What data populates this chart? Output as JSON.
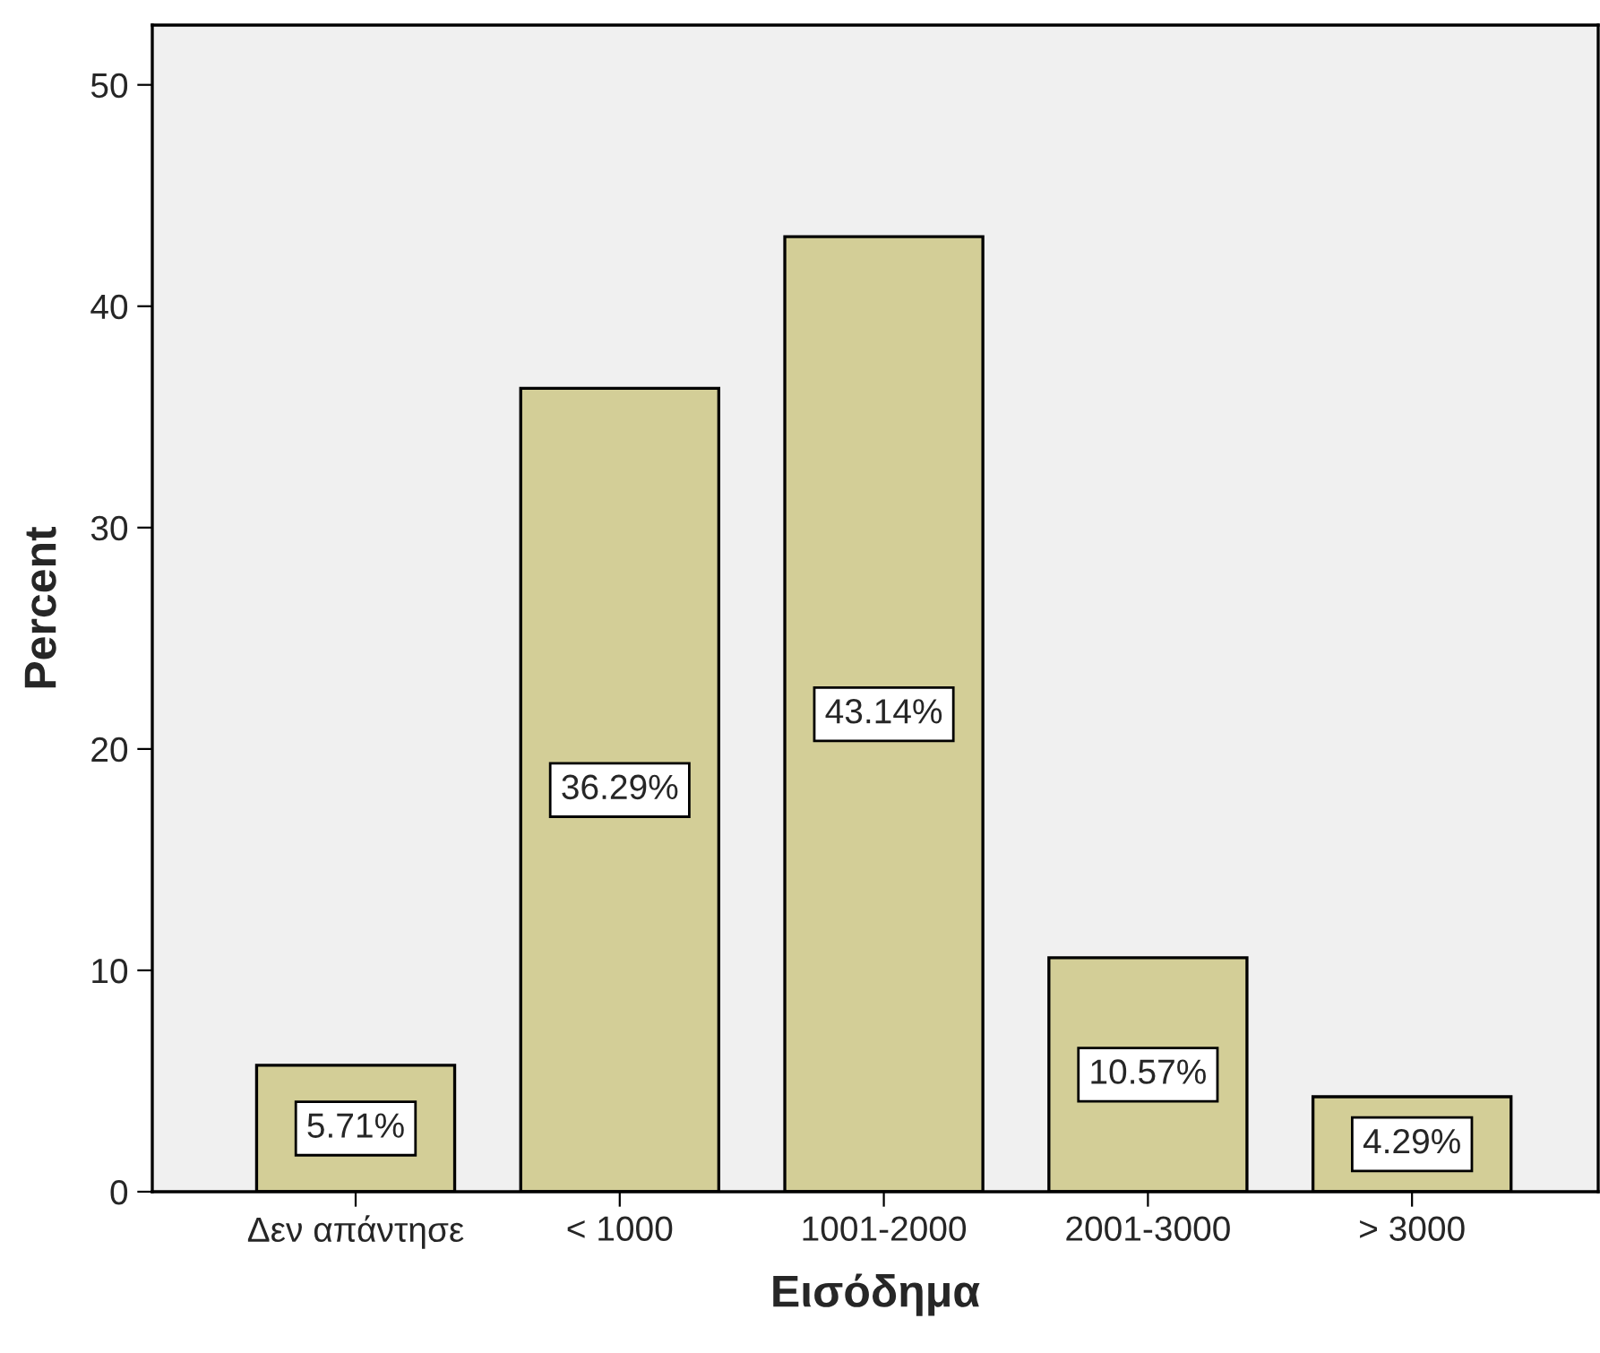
{
  "chart_data": {
    "type": "bar",
    "xlabel": "Εισόδημα",
    "ylabel": "Percent",
    "categories": [
      "Δεν απάντησε",
      "< 1000",
      "1001-2000",
      "2001-3000",
      "> 3000"
    ],
    "values": [
      5.71,
      36.29,
      43.14,
      10.57,
      4.29
    ],
    "value_labels": [
      "5.71%",
      "36.29%",
      "43.14%",
      "10.57%",
      "4.29%"
    ],
    "color": "#d3ce97",
    "ylim": [
      0,
      52.7
    ],
    "yticks": [
      0,
      10,
      20,
      30,
      40,
      50
    ],
    "grid": false,
    "legend": false
  }
}
